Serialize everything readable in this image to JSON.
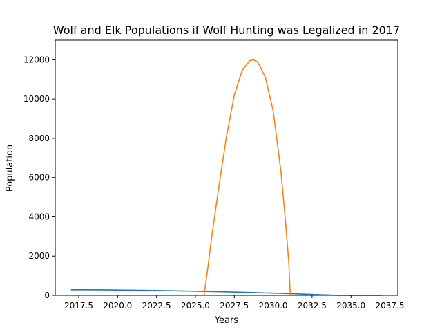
{
  "chart_data": {
    "type": "line",
    "title": "Wolf and Elk Populations if Wolf Hunting was Legalized in 2017",
    "xlabel": "Years",
    "ylabel": "Population",
    "xlim": [
      2015.99,
      2038.01
    ],
    "ylim": [
      0,
      13000
    ],
    "xticks": [
      2017.5,
      2020.0,
      2022.5,
      2025.0,
      2027.5,
      2030.0,
      2032.5,
      2035.0,
      2037.5
    ],
    "xtick_labels": [
      "2017.5",
      "2020.0",
      "2022.5",
      "2025.0",
      "2027.5",
      "2030.0",
      "2032.5",
      "2035.0",
      "2037.5"
    ],
    "yticks": [
      0,
      2000,
      4000,
      6000,
      8000,
      10000,
      12000
    ],
    "ytick_labels": [
      "0",
      "2000",
      "4000",
      "6000",
      "8000",
      "10000",
      "12000"
    ],
    "grid": false,
    "series": [
      {
        "color": "#1f77b4",
        "x": [
          2017,
          2018,
          2019,
          2020,
          2021,
          2022,
          2023,
          2024,
          2025,
          2026,
          2027,
          2028,
          2029,
          2030,
          2031,
          2032,
          2033,
          2034,
          2035,
          2036,
          2037
        ],
        "y": [
          290,
          288,
          283,
          276,
          268,
          258,
          246,
          232,
          216,
          199,
          181,
          161,
          140,
          118,
          93,
          65,
          35,
          5,
          0,
          0,
          0
        ]
      },
      {
        "color": "#ff7f0e",
        "x": [
          2025.55,
          2025.8,
          2026.0,
          2026.5,
          2027.0,
          2027.5,
          2028.0,
          2028.5,
          2028.7,
          2029.0,
          2029.5,
          2030.0,
          2030.5,
          2030.8,
          2031.0,
          2031.1
        ],
        "y": [
          0,
          1400,
          2700,
          5500,
          8100,
          10200,
          11450,
          11960,
          12000,
          11900,
          11100,
          9400,
          6300,
          3700,
          1700,
          0
        ]
      }
    ]
  }
}
